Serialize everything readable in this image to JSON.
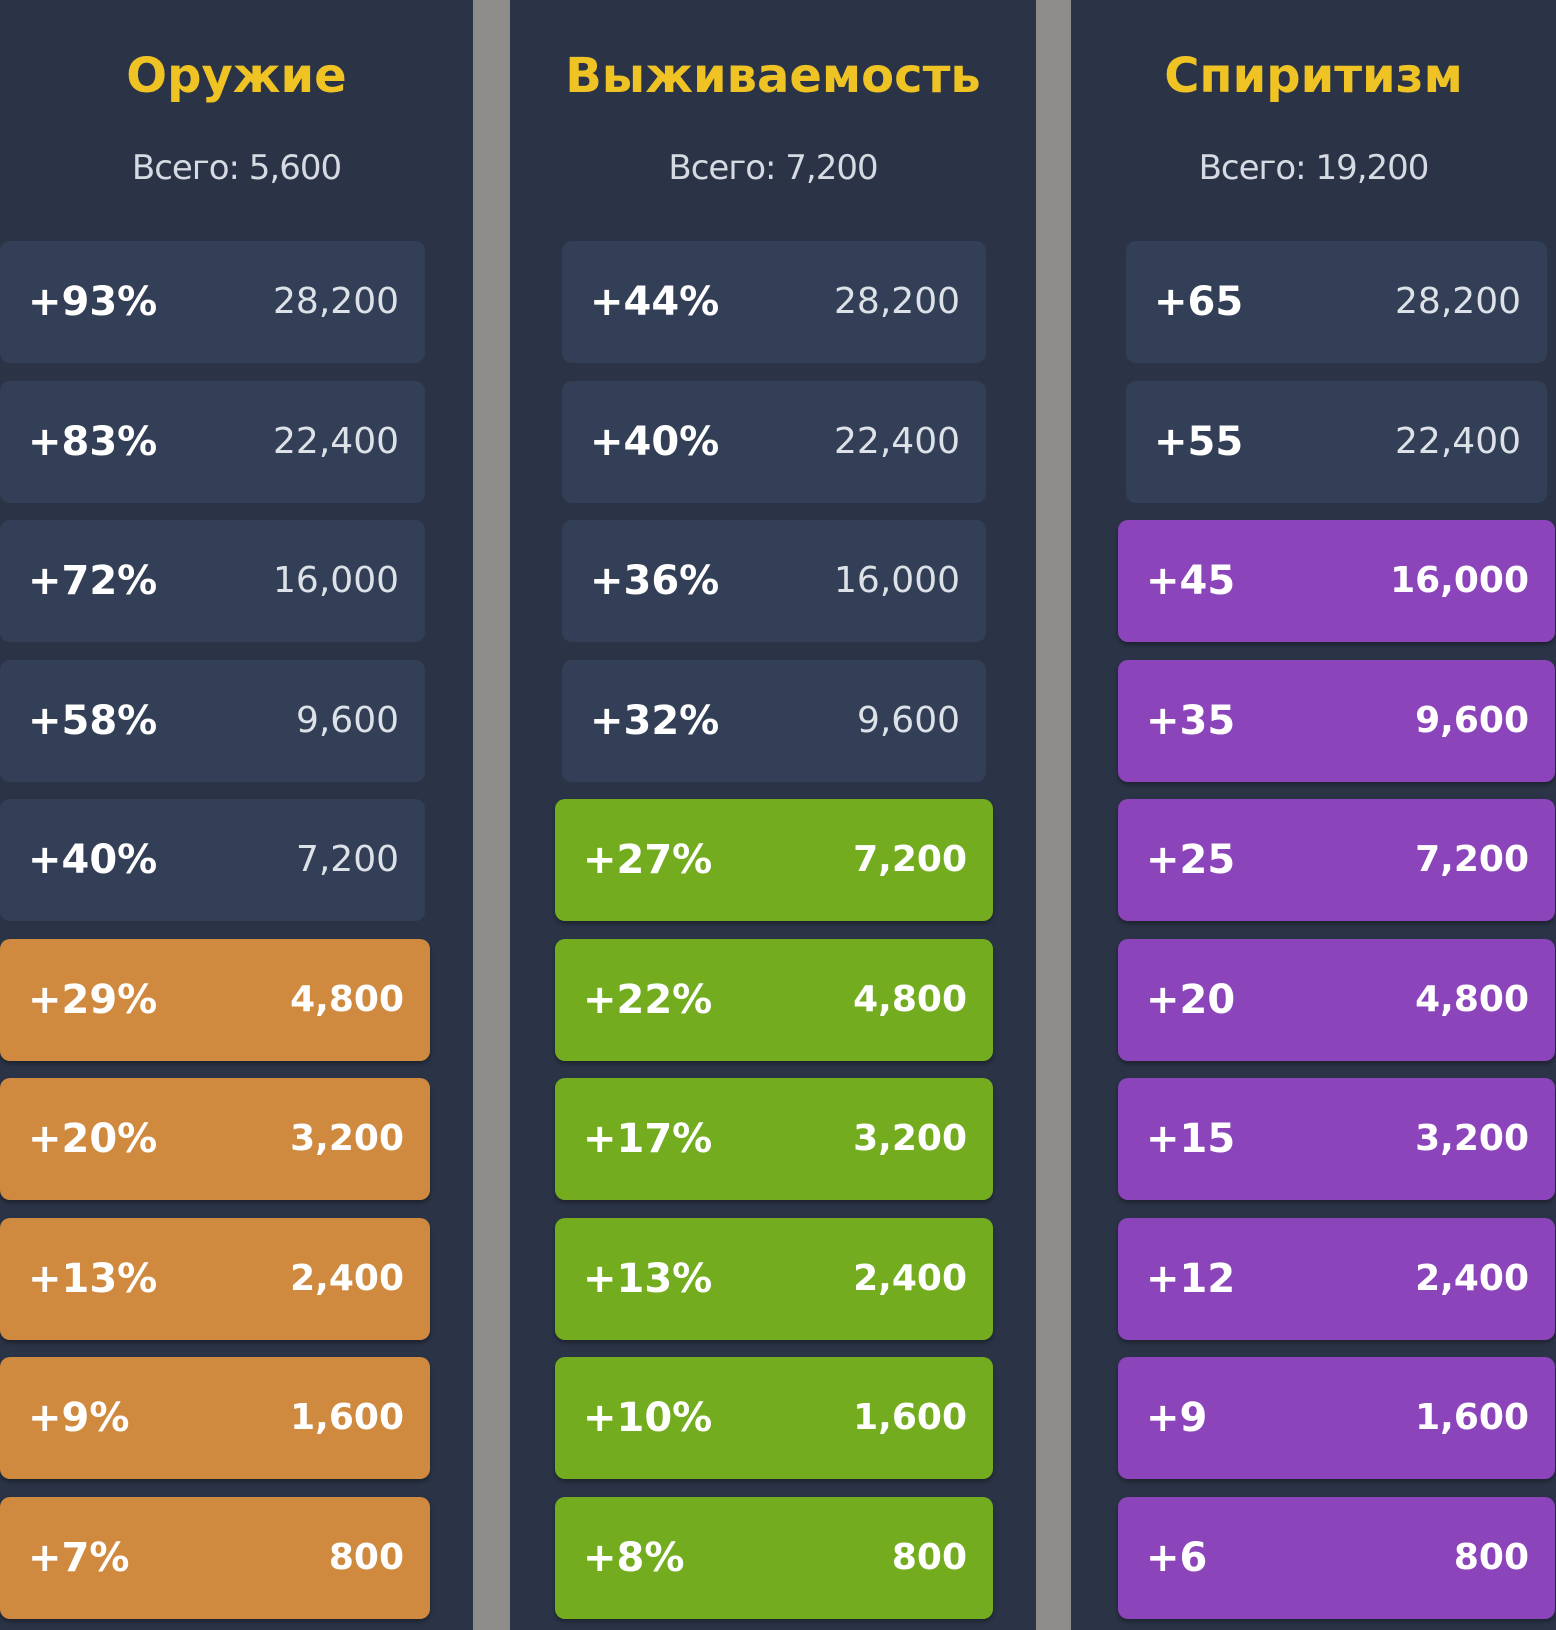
{
  "columns": [
    {
      "title": "Оружие",
      "total": "Всего: 5,600",
      "active_color": "#cf8a3f",
      "rows": [
        {
          "bonus": "+93%",
          "cost": "28,200",
          "active": false
        },
        {
          "bonus": "+83%",
          "cost": "22,400",
          "active": false
        },
        {
          "bonus": "+72%",
          "cost": "16,000",
          "active": false
        },
        {
          "bonus": "+58%",
          "cost": "9,600",
          "active": false
        },
        {
          "bonus": "+40%",
          "cost": "7,200",
          "active": false
        },
        {
          "bonus": "+29%",
          "cost": "4,800",
          "active": true
        },
        {
          "bonus": "+20%",
          "cost": "3,200",
          "active": true
        },
        {
          "bonus": "+13%",
          "cost": "2,400",
          "active": true
        },
        {
          "bonus": "+9%",
          "cost": "1,600",
          "active": true
        },
        {
          "bonus": "+7%",
          "cost": "800",
          "active": true
        }
      ]
    },
    {
      "title": "Выживаемость",
      "total": "Всего: 7,200",
      "active_color": "#73ad1f",
      "rows": [
        {
          "bonus": "+44%",
          "cost": "28,200",
          "active": false
        },
        {
          "bonus": "+40%",
          "cost": "22,400",
          "active": false
        },
        {
          "bonus": "+36%",
          "cost": "16,000",
          "active": false
        },
        {
          "bonus": "+32%",
          "cost": "9,600",
          "active": false
        },
        {
          "bonus": "+27%",
          "cost": "7,200",
          "active": true
        },
        {
          "bonus": "+22%",
          "cost": "4,800",
          "active": true
        },
        {
          "bonus": "+17%",
          "cost": "3,200",
          "active": true
        },
        {
          "bonus": "+13%",
          "cost": "2,400",
          "active": true
        },
        {
          "bonus": "+10%",
          "cost": "1,600",
          "active": true
        },
        {
          "bonus": "+8%",
          "cost": "800",
          "active": true
        }
      ]
    },
    {
      "title": "Спиритизм",
      "total": "Всего: 19,200",
      "active_color": "#8c44bb",
      "rows": [
        {
          "bonus": "+65",
          "cost": "28,200",
          "active": false
        },
        {
          "bonus": "+55",
          "cost": "22,400",
          "active": false
        },
        {
          "bonus": "+45",
          "cost": "16,000",
          "active": true
        },
        {
          "bonus": "+35",
          "cost": "9,600",
          "active": true
        },
        {
          "bonus": "+25",
          "cost": "7,200",
          "active": true
        },
        {
          "bonus": "+20",
          "cost": "4,800",
          "active": true
        },
        {
          "bonus": "+15",
          "cost": "3,200",
          "active": true
        },
        {
          "bonus": "+12",
          "cost": "2,400",
          "active": true
        },
        {
          "bonus": "+9",
          "cost": "1,600",
          "active": true
        },
        {
          "bonus": "+6",
          "cost": "800",
          "active": true
        }
      ]
    }
  ]
}
